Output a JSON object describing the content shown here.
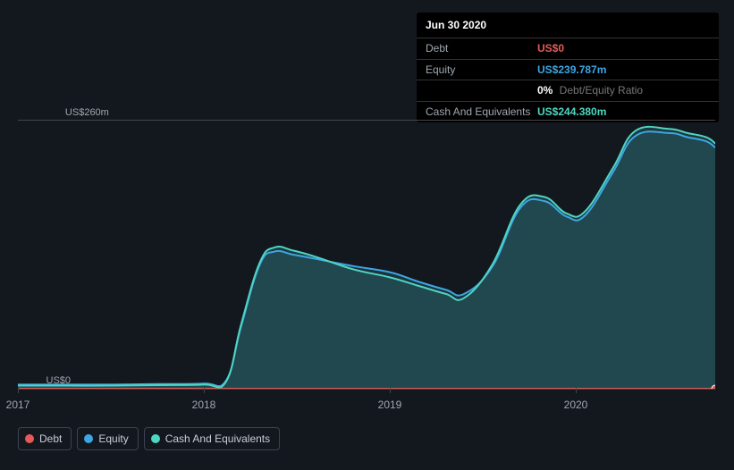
{
  "tooltip": {
    "date": "Jun 30 2020",
    "rows": [
      {
        "label": "Debt",
        "value": "US$0",
        "color": "#e45a5a"
      },
      {
        "label": "Equity",
        "value": "US$239.787m",
        "color": "#3da6e4"
      },
      {
        "label": "",
        "value": "0%",
        "suffix": " Debt/Equity Ratio",
        "color": "#ffffff"
      },
      {
        "label": "Cash And Equivalents",
        "value": "US$244.380m",
        "color": "#4ed6c0"
      }
    ]
  },
  "chart": {
    "type": "area",
    "background_color": "#13181f",
    "grid_color": "#444444",
    "y": {
      "min": 0,
      "max": 260,
      "labels": [
        {
          "v": 260,
          "text": "US$260m"
        },
        {
          "v": 0,
          "text": "US$0"
        }
      ]
    },
    "x": {
      "min": 0,
      "max": 3.75,
      "ticks": [
        {
          "v": 0,
          "label": "2017"
        },
        {
          "v": 1,
          "label": "2018"
        },
        {
          "v": 2,
          "label": "2019"
        },
        {
          "v": 3,
          "label": "2020"
        }
      ]
    },
    "series": [
      {
        "name": "Debt",
        "color": "#e45a5a",
        "fill_opacity": 0,
        "line_width": 2,
        "points": [
          [
            0,
            0
          ],
          [
            0.25,
            0
          ],
          [
            0.5,
            0
          ],
          [
            0.75,
            0
          ],
          [
            1,
            0
          ],
          [
            1.25,
            0
          ],
          [
            1.5,
            0
          ],
          [
            1.75,
            0
          ],
          [
            2,
            0
          ],
          [
            2.25,
            0
          ],
          [
            2.5,
            0
          ],
          [
            2.75,
            0
          ],
          [
            3,
            0
          ],
          [
            3.25,
            0
          ],
          [
            3.5,
            0
          ],
          [
            3.75,
            0
          ]
        ]
      },
      {
        "name": "Equity",
        "color": "#3da6e4",
        "fill": "#234a58",
        "fill_opacity": 0.55,
        "line_width": 2,
        "points": [
          [
            0,
            4
          ],
          [
            0.25,
            4
          ],
          [
            0.5,
            4
          ],
          [
            0.75,
            4.5
          ],
          [
            1,
            5
          ],
          [
            1.12,
            8
          ],
          [
            1.2,
            60
          ],
          [
            1.3,
            120
          ],
          [
            1.38,
            133
          ],
          [
            1.48,
            130
          ],
          [
            1.6,
            126
          ],
          [
            1.8,
            119
          ],
          [
            2.0,
            113
          ],
          [
            2.15,
            104
          ],
          [
            2.3,
            96
          ],
          [
            2.4,
            92
          ],
          [
            2.55,
            118
          ],
          [
            2.7,
            175
          ],
          [
            2.83,
            182
          ],
          [
            2.95,
            167
          ],
          [
            3.05,
            168
          ],
          [
            3.2,
            210
          ],
          [
            3.32,
            245
          ],
          [
            3.5,
            248
          ],
          [
            3.6,
            244
          ],
          [
            3.7,
            240
          ],
          [
            3.75,
            234
          ]
        ]
      },
      {
        "name": "Cash And Equivalents",
        "color": "#4ed6c0",
        "fill": "#2a6064",
        "fill_opacity": 0.45,
        "line_width": 2,
        "points": [
          [
            0,
            3
          ],
          [
            0.25,
            3
          ],
          [
            0.5,
            3
          ],
          [
            0.75,
            3.5
          ],
          [
            1,
            4
          ],
          [
            1.12,
            7
          ],
          [
            1.2,
            62
          ],
          [
            1.3,
            122
          ],
          [
            1.38,
            137
          ],
          [
            1.48,
            134
          ],
          [
            1.6,
            128
          ],
          [
            1.8,
            116
          ],
          [
            2.0,
            108
          ],
          [
            2.15,
            100
          ],
          [
            2.3,
            92
          ],
          [
            2.4,
            88
          ],
          [
            2.55,
            120
          ],
          [
            2.7,
            178
          ],
          [
            2.83,
            186
          ],
          [
            2.95,
            170
          ],
          [
            3.05,
            172
          ],
          [
            3.2,
            214
          ],
          [
            3.32,
            250
          ],
          [
            3.5,
            252
          ],
          [
            3.6,
            248
          ],
          [
            3.7,
            244
          ],
          [
            3.75,
            238
          ]
        ]
      }
    ],
    "marker": {
      "x": 3.75,
      "debt_y": 0,
      "debt_color": "#e45a5a"
    }
  },
  "legend": [
    {
      "name": "Debt",
      "color": "#e45a5a"
    },
    {
      "name": "Equity",
      "color": "#3da6e4"
    },
    {
      "name": "Cash And Equivalents",
      "color": "#4ed6c0"
    }
  ]
}
